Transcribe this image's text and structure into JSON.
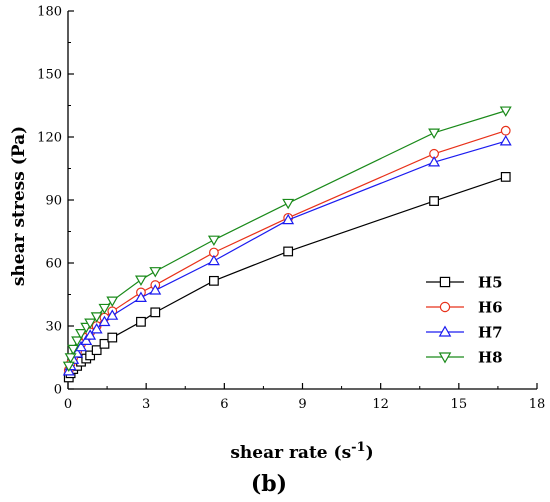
{
  "chart_data": {
    "type": "line",
    "panel_label": "(b)",
    "xlabel": "shear rate (s",
    "xlabel_sup": "-1",
    "xlabel_end": ")",
    "ylabel": "shear stress (Pa)",
    "xlim": [
      0,
      18
    ],
    "ylim": [
      0,
      180
    ],
    "x_ticks": [
      0,
      3,
      6,
      9,
      12,
      15,
      18
    ],
    "y_ticks": [
      0,
      30,
      60,
      90,
      120,
      150,
      180
    ],
    "x_tick_labels": [
      "0",
      "3",
      "6",
      "9",
      "12",
      "15",
      "18"
    ],
    "y_tick_labels": [
      "0",
      "30",
      "60",
      "90",
      "120",
      "150",
      "180"
    ],
    "grid": false,
    "legend_position": "right",
    "x": [
      0.03,
      0.1,
      0.2,
      0.35,
      0.5,
      0.7,
      0.85,
      1.1,
      1.4,
      1.7,
      2.8,
      3.35,
      5.6,
      8.45,
      14.05,
      16.8
    ],
    "series": [
      {
        "name": "H5",
        "marker": "square",
        "color": "#000000",
        "values": [
          5.5,
          7.5,
          9.5,
          11,
          13,
          14.5,
          16,
          18.5,
          21.5,
          24.5,
          32,
          36.5,
          51.5,
          65.5,
          89.5,
          101
        ]
      },
      {
        "name": "H6",
        "marker": "circle",
        "color": "#e8311a",
        "values": [
          9,
          12,
          15,
          18,
          21.5,
          24.5,
          27,
          30,
          34,
          37,
          46,
          49.5,
          65,
          81.5,
          112,
          123
        ]
      },
      {
        "name": "H7",
        "marker": "triangle-up",
        "color": "#1c1cf0",
        "values": [
          8.5,
          11,
          14,
          17,
          20,
          23,
          25.5,
          28.5,
          32,
          35,
          43.5,
          47,
          61,
          80.5,
          108,
          118
        ]
      },
      {
        "name": "H8",
        "marker": "triangle-down",
        "color": "#1a8a1a",
        "values": [
          11,
          15,
          19,
          23,
          26.5,
          29.5,
          31.5,
          34.5,
          38.5,
          42,
          52,
          56,
          71,
          88.5,
          122,
          132.5
        ]
      }
    ]
  }
}
